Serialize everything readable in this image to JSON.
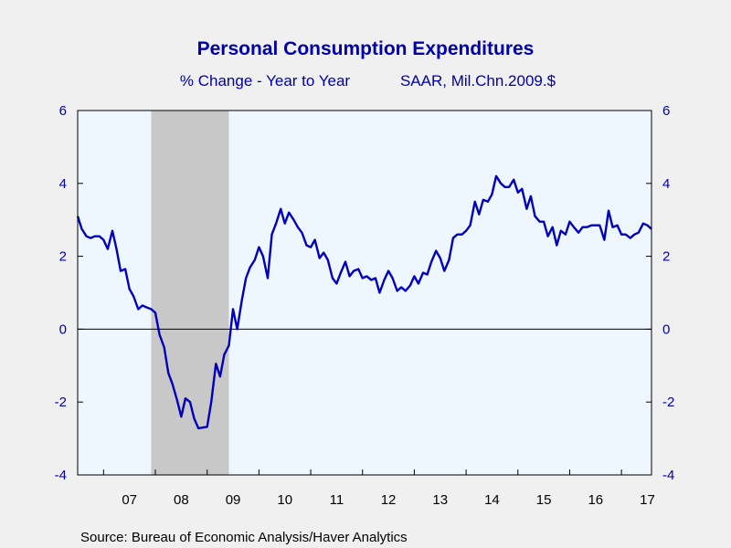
{
  "chart_data": {
    "type": "line",
    "title": "Personal Consumption Expenditures",
    "subtitle_left": "% Change - Year to Year",
    "subtitle_right": "SAAR, Mil.Chn.2009.$",
    "source": "Source:  Bureau of Economic Analysis/Haver Analytics",
    "ylim": [
      -4,
      6
    ],
    "yticks": [
      -4,
      -2,
      0,
      2,
      4,
      6
    ],
    "xlim": [
      2006.5,
      2017.58
    ],
    "xticks": [
      {
        "label": "07",
        "year": 2007
      },
      {
        "label": "08",
        "year": 2008
      },
      {
        "label": "09",
        "year": 2009
      },
      {
        "label": "10",
        "year": 2010
      },
      {
        "label": "11",
        "year": 2011
      },
      {
        "label": "12",
        "year": 2012
      },
      {
        "label": "13",
        "year": 2013
      },
      {
        "label": "14",
        "year": 2014
      },
      {
        "label": "15",
        "year": 2015
      },
      {
        "label": "16",
        "year": 2016
      },
      {
        "label": "17",
        "year": 2017
      }
    ],
    "recession": [
      2007.92,
      2009.42
    ],
    "grid": false,
    "colors": {
      "line": "#0000bb",
      "plot_background": "#eef6ff",
      "recession": "#c8c8c8",
      "text": "#0000aa"
    },
    "series": [
      {
        "x": [
          2006.5,
          2006.58,
          2006.67,
          2006.75,
          2006.83,
          2006.92,
          2007.0,
          2007.08,
          2007.17,
          2007.25,
          2007.33,
          2007.42,
          2007.5,
          2007.58,
          2007.67,
          2007.75,
          2007.83,
          2007.92,
          2008.0,
          2008.08,
          2008.17,
          2008.25,
          2008.33,
          2008.42,
          2008.5,
          2008.58,
          2008.67,
          2008.75,
          2008.83,
          2008.92,
          2009.0,
          2009.08,
          2009.17,
          2009.25,
          2009.33,
          2009.42,
          2009.5,
          2009.58,
          2009.67,
          2009.75,
          2009.83,
          2009.92,
          2010.0,
          2010.08,
          2010.17,
          2010.25,
          2010.33,
          2010.42,
          2010.5,
          2010.58,
          2010.67,
          2010.75,
          2010.83,
          2010.92,
          2011.0,
          2011.08,
          2011.17,
          2011.25,
          2011.33,
          2011.42,
          2011.5,
          2011.58,
          2011.67,
          2011.75,
          2011.83,
          2011.92,
          2012.0,
          2012.08,
          2012.17,
          2012.25,
          2012.33,
          2012.42,
          2012.5,
          2012.58,
          2012.67,
          2012.75,
          2012.83,
          2012.92,
          2013.0,
          2013.08,
          2013.17,
          2013.25,
          2013.33,
          2013.42,
          2013.5,
          2013.58,
          2013.67,
          2013.75,
          2013.83,
          2013.92,
          2014.0,
          2014.08,
          2014.17,
          2014.25,
          2014.33,
          2014.42,
          2014.5,
          2014.58,
          2014.67,
          2014.75,
          2014.83,
          2014.92,
          2015.0,
          2015.08,
          2015.17,
          2015.25,
          2015.33,
          2015.42,
          2015.5,
          2015.58,
          2015.67,
          2015.75,
          2015.83,
          2015.92,
          2016.0,
          2016.08,
          2016.17,
          2016.25,
          2016.33,
          2016.42,
          2016.5,
          2016.58,
          2016.67,
          2016.75,
          2016.83,
          2016.92,
          2017.0,
          2017.08,
          2017.17,
          2017.25,
          2017.33,
          2017.42,
          2017.5,
          2017.58
        ],
        "y": [
          3.1,
          2.75,
          2.55,
          2.5,
          2.55,
          2.55,
          2.45,
          2.2,
          2.7,
          2.2,
          1.6,
          1.65,
          1.1,
          0.9,
          0.55,
          0.65,
          0.6,
          0.55,
          0.45,
          -0.15,
          -0.5,
          -1.2,
          -1.5,
          -1.95,
          -2.4,
          -1.9,
          -2.0,
          -2.45,
          -2.72,
          -2.7,
          -2.68,
          -2.0,
          -0.95,
          -1.3,
          -0.7,
          -0.45,
          0.55,
          0.0,
          0.8,
          1.4,
          1.7,
          1.9,
          2.25,
          2.0,
          1.4,
          2.6,
          2.9,
          3.3,
          2.9,
          3.2,
          3.0,
          2.8,
          2.65,
          2.3,
          2.25,
          2.45,
          1.95,
          2.1,
          1.9,
          1.4,
          1.25,
          1.55,
          1.85,
          1.45,
          1.6,
          1.65,
          1.4,
          1.45,
          1.35,
          1.4,
          1.0,
          1.35,
          1.6,
          1.4,
          1.05,
          1.15,
          1.05,
          1.2,
          1.45,
          1.25,
          1.55,
          1.5,
          1.85,
          2.15,
          1.95,
          1.6,
          1.9,
          2.5,
          2.6,
          2.6,
          2.7,
          2.85,
          3.5,
          3.15,
          3.55,
          3.5,
          3.7,
          4.2,
          4.0,
          3.9,
          3.9,
          4.1,
          3.75,
          3.85,
          3.3,
          3.65,
          3.1,
          2.95,
          2.95,
          2.55,
          2.8,
          2.3,
          2.7,
          2.6,
          2.95,
          2.8,
          2.65,
          2.8,
          2.8,
          2.85,
          2.85,
          2.85,
          2.45,
          3.25,
          2.8,
          2.85,
          2.6,
          2.6,
          2.5,
          2.6,
          2.65,
          2.9,
          2.85,
          2.75
        ]
      }
    ]
  }
}
